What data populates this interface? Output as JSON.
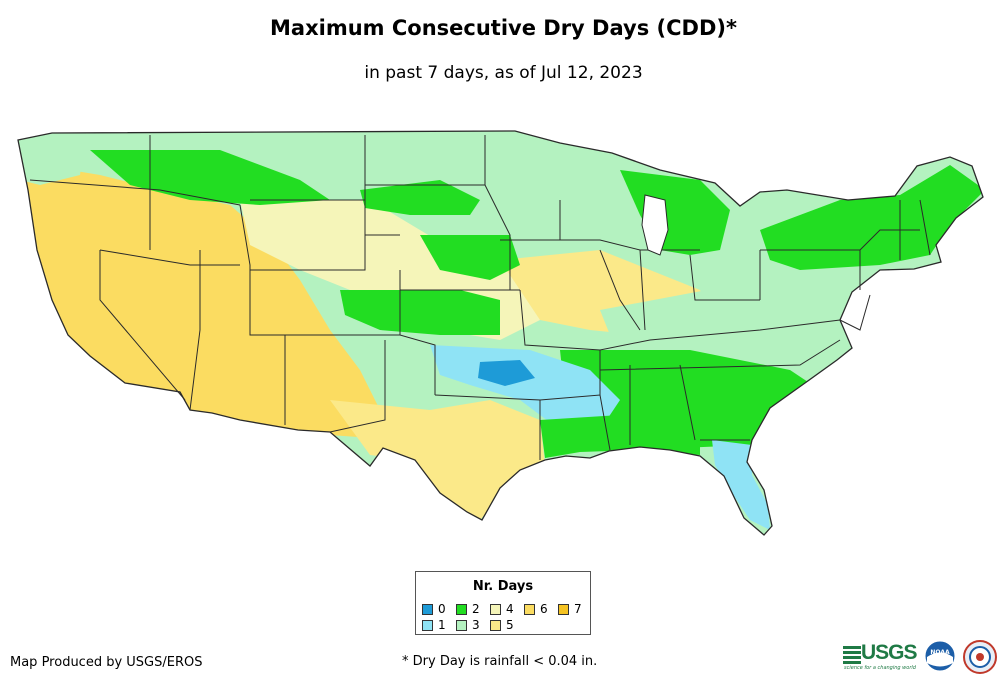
{
  "header": {
    "title": "Maximum Consecutive Dry Days (CDD)*",
    "subtitle": "in past 7 days, as of Jul 12, 2023"
  },
  "legend": {
    "title": "Nr. Days",
    "items": [
      {
        "label": "0",
        "color": "#1e9bd7"
      },
      {
        "label": "1",
        "color": "#8fe3f5"
      },
      {
        "label": "2",
        "color": "#22dd22"
      },
      {
        "label": "3",
        "color": "#b4f2c0"
      },
      {
        "label": "4",
        "color": "#f5f5b9"
      },
      {
        "label": "5",
        "color": "#fbe989"
      },
      {
        "label": "6",
        "color": "#fbdc61"
      },
      {
        "label": "7",
        "color": "#f5c322"
      }
    ]
  },
  "footer": {
    "credit": "Map Produced by USGS/EROS",
    "footnote": "* Dry Day is rainfall < 0.04 in.",
    "usgs_logo_text": "USGS",
    "usgs_tagline": "science for a changing world",
    "noaa_logo_text": "NOAA"
  },
  "map_colors": {
    "border": "#2a2a2a",
    "cdd_0": "#1e9bd7",
    "cdd_1": "#8fe3f5",
    "cdd_2": "#22dd22",
    "cdd_3": "#b4f2c0",
    "cdd_4": "#f5f5b9",
    "cdd_5": "#fbe989",
    "cdd_6": "#fbdc61"
  }
}
